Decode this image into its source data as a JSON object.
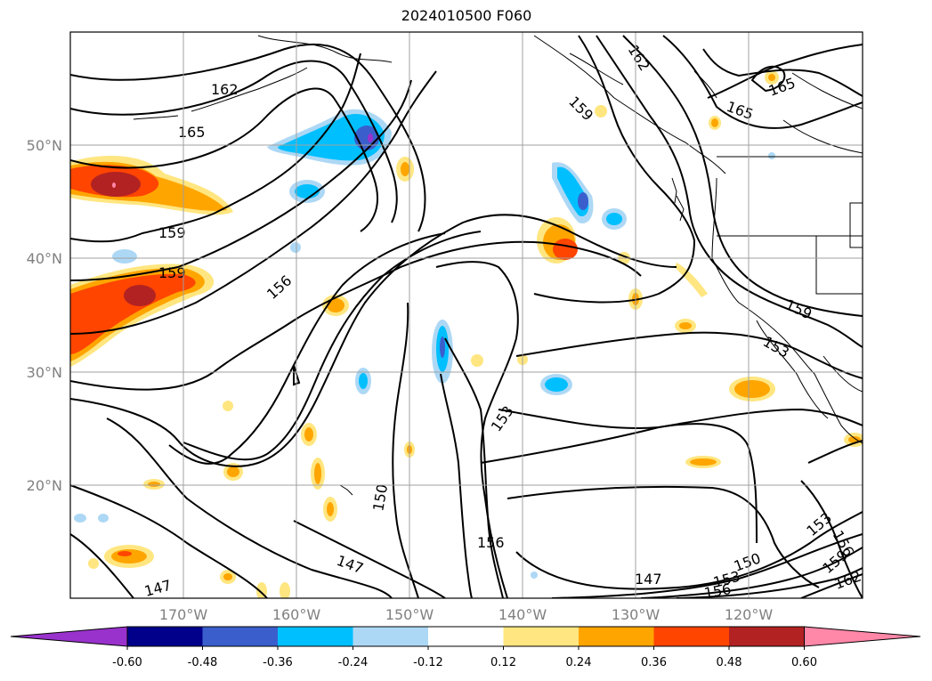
{
  "title": "2024010500 F060",
  "lat_labels": [
    "50°N",
    "40°N",
    "30°N",
    "20°N"
  ],
  "lon_labels": [
    "170°W",
    "160°W",
    "150°W",
    "140°W",
    "130°W",
    "120°W"
  ],
  "colorbar": {
    "ticks": [
      "-0.60",
      "-0.48",
      "-0.36",
      "-0.24",
      "-0.12",
      "0.12",
      "0.24",
      "0.36",
      "0.48",
      "0.60"
    ],
    "colors": [
      "#9932cc",
      "#00008b",
      "#3a5fcd",
      "#00bfff",
      "#add8f5",
      "#ffffff",
      "#ffe680",
      "#ffa500",
      "#ff4500",
      "#b22222",
      "#ff87a8"
    ]
  },
  "contour_labels": [
    "162",
    "165",
    "159",
    "159",
    "156",
    "162",
    "159",
    "165",
    "165",
    "159",
    "153",
    "153",
    "150",
    "156",
    "147",
    "147",
    "147",
    "150",
    "153",
    "156",
    "156",
    "153",
    "159",
    "162"
  ]
}
